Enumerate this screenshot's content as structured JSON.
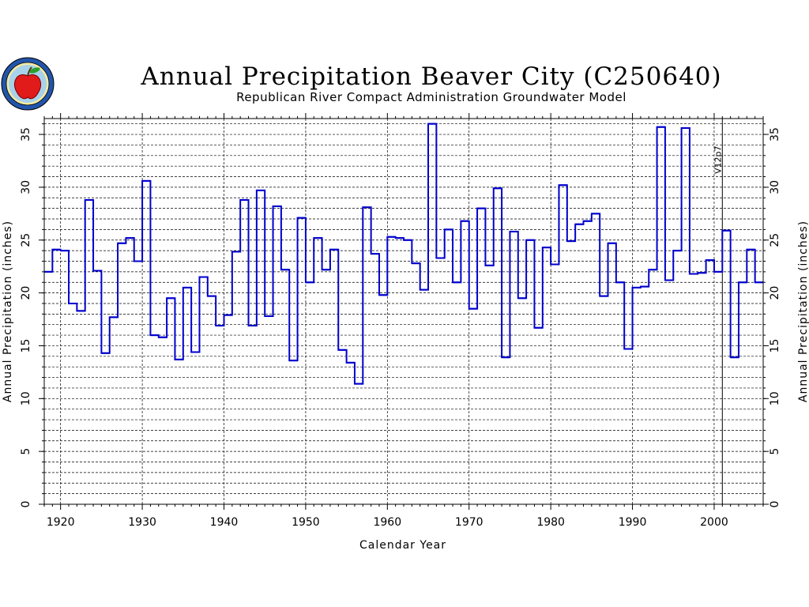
{
  "chart_data": {
    "type": "line",
    "step": true,
    "title": "Annual Precipitation Beaver City (C250640)",
    "subtitle": "Republican River Compact Administration Groundwater Model",
    "xlabel": "Calendar Year",
    "ylabel": "Annual Precipitation (inches)",
    "ylabel_right": "Annual Precipitation (inches)",
    "xlim": [
      1918,
      2006
    ],
    "ylim": [
      0,
      36.5
    ],
    "x_ticks": [
      1920,
      1930,
      1940,
      1950,
      1960,
      1970,
      1980,
      1990,
      2000
    ],
    "y_ticks": [
      0,
      5,
      10,
      15,
      20,
      25,
      30,
      35
    ],
    "grid": true,
    "annotation": {
      "label": "V12p7",
      "x": 2001
    },
    "series_color": "#0000cc",
    "series": [
      {
        "x": [
          1918,
          1919,
          1920,
          1921,
          1922,
          1923,
          1924,
          1925,
          1926,
          1927,
          1928,
          1929,
          1930,
          1931,
          1932,
          1933,
          1934,
          1935,
          1936,
          1937,
          1938,
          1939,
          1940,
          1941,
          1942,
          1943,
          1944,
          1945,
          1946,
          1947,
          1948,
          1949,
          1950,
          1951,
          1952,
          1953,
          1954,
          1955,
          1956,
          1957,
          1958,
          1959,
          1960,
          1961,
          1962,
          1963,
          1964,
          1965,
          1966,
          1967,
          1968,
          1969,
          1970,
          1971,
          1972,
          1973,
          1974,
          1975,
          1976,
          1977,
          1978,
          1979,
          1980,
          1981,
          1982,
          1983,
          1984,
          1985,
          1986,
          1987,
          1988,
          1989,
          1990,
          1991,
          1992,
          1993,
          1994,
          1995,
          1996,
          1997,
          1998,
          1999,
          2000,
          2001,
          2002,
          2003,
          2004,
          2005
        ],
        "values": [
          22.0,
          24.1,
          24.0,
          19.0,
          18.3,
          28.8,
          22.1,
          14.3,
          17.7,
          24.7,
          25.2,
          23.0,
          30.6,
          16.0,
          15.8,
          19.5,
          13.7,
          20.5,
          14.4,
          21.5,
          19.7,
          16.9,
          17.9,
          23.9,
          28.8,
          16.9,
          29.7,
          17.8,
          28.2,
          22.2,
          13.6,
          27.1,
          21.0,
          25.2,
          22.2,
          24.1,
          14.6,
          13.4,
          11.4,
          28.1,
          23.7,
          19.8,
          25.3,
          25.2,
          25.0,
          22.8,
          20.3,
          36.0,
          23.3,
          26.0,
          21.0,
          26.8,
          18.5,
          28.0,
          22.6,
          29.9,
          13.9,
          25.8,
          19.5,
          25.0,
          16.7,
          24.3,
          22.7,
          30.2,
          24.9,
          26.5,
          26.8,
          27.5,
          19.7,
          24.7,
          21.0,
          14.7,
          20.5,
          20.6,
          22.2,
          35.7,
          21.2,
          24.0,
          35.6,
          21.8,
          21.9,
          23.1,
          22.0,
          25.9,
          13.9,
          21.0,
          24.1,
          21.0
        ]
      }
    ]
  }
}
